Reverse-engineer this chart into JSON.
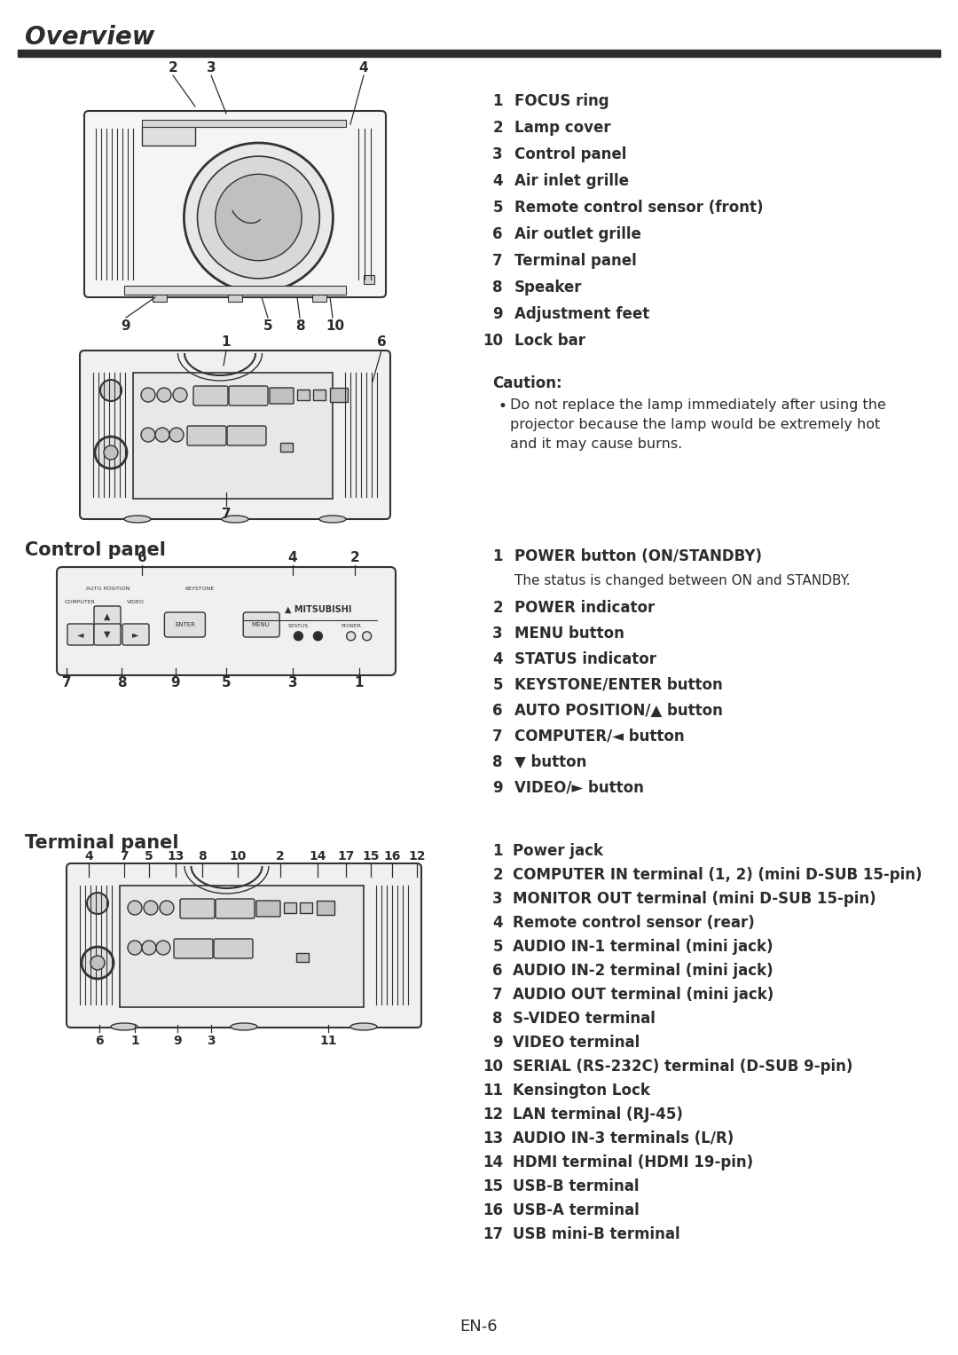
{
  "title": "Overview",
  "bg_color": "#ffffff",
  "text_color": "#2c2c2c",
  "line_color": "#2c2c2c",
  "page_number": "EN-6",
  "section1_label": "Control panel",
  "section2_label": "Terminal panel",
  "overview_items_left": [
    "1",
    "2",
    "3",
    "4",
    "5",
    "6",
    "7",
    "8",
    "9",
    "10"
  ],
  "overview_items_right": [
    "FOCUS ring",
    "Lamp cover",
    "Control panel",
    "Air inlet grille",
    "Remote control sensor (front)",
    "Air outlet grille",
    "Terminal panel",
    "Speaker",
    "Adjustment feet",
    "Lock bar"
  ],
  "caution_title": "Caution:",
  "caution_lines": [
    "Do not replace the lamp immediately after using the",
    "projector because the lamp would be extremely hot",
    "and it may cause burns."
  ],
  "control_items": [
    [
      "1",
      "POWER button (ON/STANDBY)",
      true
    ],
    [
      "",
      "The status is changed between ON and STANDBY.",
      false
    ],
    [
      "2",
      "POWER indicator",
      true
    ],
    [
      "3",
      "MENU button",
      true
    ],
    [
      "4",
      "STATUS indicator",
      true
    ],
    [
      "5",
      "KEYSTONE/ENTER button",
      true
    ],
    [
      "6",
      "AUTO POSITION/▲ button",
      true
    ],
    [
      "7",
      "COMPUTER/◄ button",
      true
    ],
    [
      "8",
      "▼ button",
      true
    ],
    [
      "9",
      "VIDEO/► button",
      true
    ]
  ],
  "terminal_items": [
    [
      "1",
      "Power jack"
    ],
    [
      "2",
      "COMPUTER IN terminal (1, 2) (mini D-SUB 15-pin)"
    ],
    [
      "3",
      "MONITOR OUT terminal (mini D-SUB 15-pin)"
    ],
    [
      "4",
      "Remote control sensor (rear)"
    ],
    [
      "5",
      "AUDIO IN-1 terminal (mini jack)"
    ],
    [
      "6",
      "AUDIO IN-2 terminal (mini jack)"
    ],
    [
      "7",
      "AUDIO OUT terminal (mini jack)"
    ],
    [
      "8",
      "S-VIDEO terminal"
    ],
    [
      "9",
      "VIDEO terminal"
    ],
    [
      "10",
      "SERIAL (RS-232C) terminal (D-SUB 9-pin)"
    ],
    [
      "11",
      "Kensington Lock"
    ],
    [
      "12",
      "LAN terminal (RJ-45)"
    ],
    [
      "13",
      "AUDIO IN-3 terminals (L/R)"
    ],
    [
      "14",
      "HDMI terminal (HDMI 19-pin)"
    ],
    [
      "15",
      "USB-B terminal"
    ],
    [
      "16",
      "USB-A terminal"
    ],
    [
      "17",
      "USB mini-B terminal"
    ]
  ]
}
